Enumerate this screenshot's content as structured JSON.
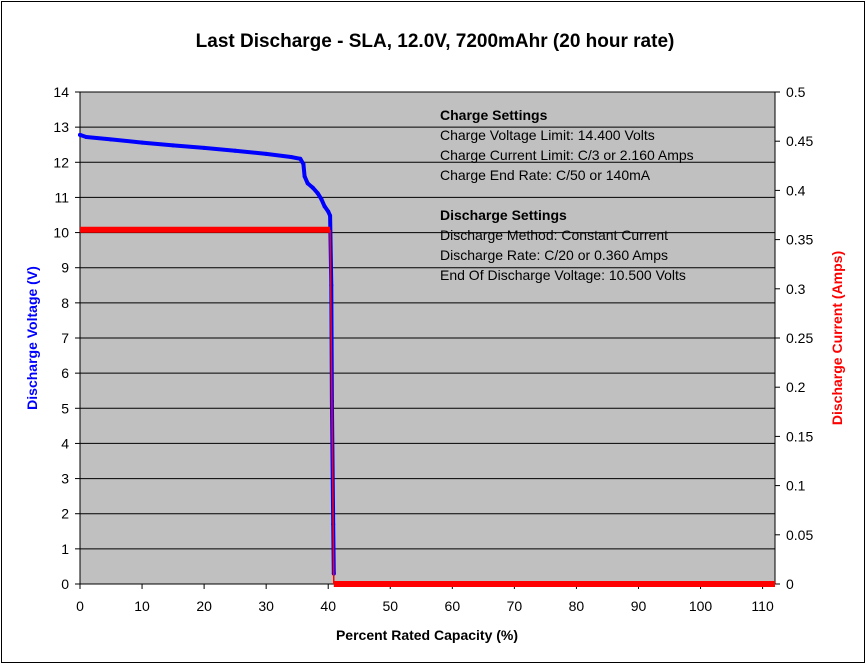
{
  "chart_data": {
    "type": "line",
    "title": "Last Discharge - SLA, 12.0V, 7200mAhr (20 hour rate)",
    "xlabel": "Percent Rated Capacity (%)",
    "ylabel_left": "Discharge Voltage (V)",
    "ylabel_right": "Discharge Current (Amps)",
    "xlim": [
      0,
      112
    ],
    "ylim_left": [
      0,
      14
    ],
    "ylim_right": [
      0,
      0.5
    ],
    "x_ticks": [
      "0",
      "10",
      "20",
      "30",
      "40",
      "50",
      "60",
      "70",
      "80",
      "90",
      "100",
      "110"
    ],
    "y_left_ticks": [
      "0",
      "1",
      "2",
      "3",
      "4",
      "5",
      "6",
      "7",
      "8",
      "9",
      "10",
      "11",
      "12",
      "13",
      "14"
    ],
    "y_right_ticks": [
      "0",
      "0.05",
      "0.1",
      "0.15",
      "0.2",
      "0.25",
      "0.3",
      "0.35",
      "0.4",
      "0.45",
      "0.5"
    ],
    "plot_background": "#c0c0c0",
    "grid": "horizontal",
    "series": [
      {
        "name": "Discharge Voltage (V)",
        "axis": "left",
        "color": "#0000ff",
        "points": [
          [
            0,
            12.78
          ],
          [
            1,
            12.72
          ],
          [
            5,
            12.65
          ],
          [
            10,
            12.56
          ],
          [
            15,
            12.48
          ],
          [
            20,
            12.41
          ],
          [
            25,
            12.33
          ],
          [
            30,
            12.24
          ],
          [
            34,
            12.15
          ],
          [
            35.5,
            12.1
          ],
          [
            36,
            11.95
          ],
          [
            36.2,
            11.6
          ],
          [
            36.7,
            11.4
          ],
          [
            37.5,
            11.28
          ],
          [
            38.3,
            11.12
          ],
          [
            38.9,
            10.95
          ],
          [
            39.4,
            10.75
          ],
          [
            40,
            10.6
          ],
          [
            40.3,
            10.48
          ],
          [
            40.5,
            8.5
          ],
          [
            40.6,
            5.2
          ],
          [
            40.8,
            1.7
          ],
          [
            40.9,
            0.3
          ]
        ]
      },
      {
        "name": "Discharge Current (Amps)",
        "axis": "right",
        "color": "#ff0000",
        "points": [
          [
            0,
            0.36
          ],
          [
            40.3,
            0.36
          ],
          [
            40.9,
            0.0
          ],
          [
            112,
            0.0
          ]
        ]
      }
    ],
    "annotations": [
      {
        "heading": "Charge Settings",
        "lines": [
          "Charge Voltage Limit: 14.400 Volts",
          "Charge Current Limit: C/3 or 2.160 Amps",
          "Charge End Rate: C/50 or 140mA"
        ]
      },
      {
        "heading": "Discharge Settings",
        "lines": [
          "Discharge Method: Constant Current",
          "Discharge Rate: C/20 or 0.360 Amps",
          "End Of Discharge Voltage: 10.500 Volts"
        ]
      }
    ]
  }
}
